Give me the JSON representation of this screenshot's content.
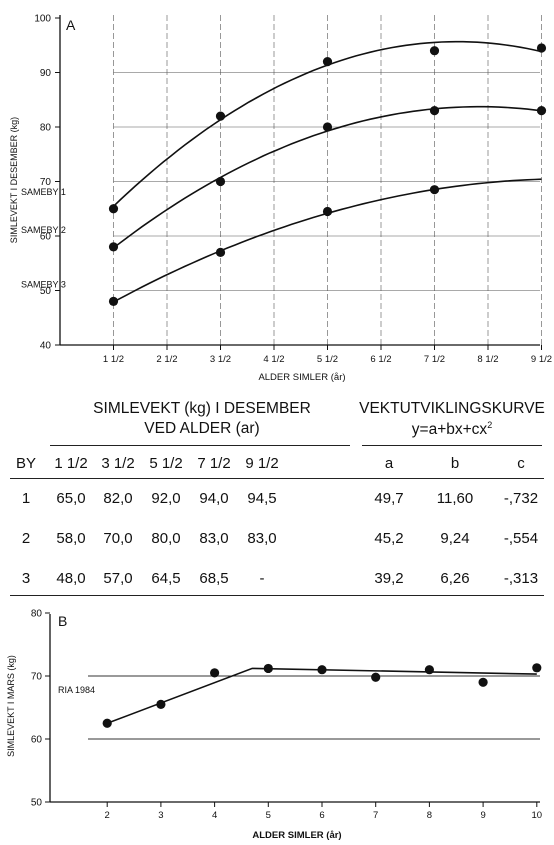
{
  "chart_data": [
    {
      "type": "line",
      "panel_label": "A",
      "xlabel": "ALDER SIMLER (år)",
      "ylabel": "SIMLEVEKT I DESEMBER (kg)",
      "x_tick_labels": [
        "1 1/2",
        "2 1/2",
        "3 1/2",
        "4 1/2",
        "5 1/2",
        "6 1/2",
        "7 1/2",
        "8 1/2",
        "9 1/2"
      ],
      "x_ticks": [
        1.5,
        2.5,
        3.5,
        4.5,
        5.5,
        6.5,
        7.5,
        8.5,
        9.5
      ],
      "xlim": [
        0.5,
        9.5
      ],
      "ylim": [
        40,
        100
      ],
      "yticks": [
        40,
        50,
        60,
        70,
        80,
        90,
        100
      ],
      "grid": true,
      "series": [
        {
          "name": "SAMEBY 1",
          "x": [
            1.5,
            3.5,
            5.5,
            7.5,
            9.5
          ],
          "values": [
            65.0,
            82.0,
            92.0,
            94.0,
            94.5
          ],
          "coef": {
            "a": 49.7,
            "b": 11.6,
            "c": -0.732
          }
        },
        {
          "name": "SAMEBY 2",
          "x": [
            1.5,
            3.5,
            5.5,
            7.5,
            9.5
          ],
          "values": [
            58.0,
            70.0,
            80.0,
            83.0,
            83.0
          ],
          "coef": {
            "a": 45.2,
            "b": 9.24,
            "c": -0.554
          }
        },
        {
          "name": "SAMEBY 3",
          "x": [
            1.5,
            3.5,
            5.5,
            7.5
          ],
          "values": [
            48.0,
            57.0,
            64.5,
            68.5
          ],
          "coef": {
            "a": 39.2,
            "b": 6.26,
            "c": -0.313
          }
        }
      ]
    },
    {
      "type": "line",
      "panel_label": "B",
      "xlabel": "ALDER SIMLER (år)",
      "ylabel": "SIMLEVEKT I MARS (kg)",
      "x_tick_labels": [
        "2",
        "3",
        "4",
        "5",
        "6",
        "7",
        "8",
        "9",
        "10"
      ],
      "x_ticks": [
        2,
        3,
        4,
        5,
        6,
        7,
        8,
        9,
        10
      ],
      "xlim": [
        1,
        10
      ],
      "ylim": [
        50,
        80
      ],
      "yticks": [
        50,
        60,
        70,
        80
      ],
      "gridlines_y": [
        60,
        70
      ],
      "series": [
        {
          "name": "RIA 1984",
          "x": [
            2,
            3,
            4,
            5,
            6,
            7,
            8,
            9,
            10
          ],
          "values": [
            62.5,
            65.5,
            70.5,
            71.2,
            71.0,
            69.8,
            71.0,
            69.0,
            71.3
          ],
          "fit_line": {
            "x": [
              2,
              4.7,
              10
            ],
            "values": [
              62.5,
              71.2,
              70.3
            ]
          }
        }
      ]
    }
  ],
  "table": {
    "group1_title_line1": "SIMLEVEKT (kg) I DESEMBER",
    "group1_title_line2": "VED ALDER (ar)",
    "group2_title_line1": "VEKTUTVIKLINGSKURVE",
    "group2_formula": "y=a+bx+cx",
    "group2_formula_exp": "2",
    "headers": [
      "BY",
      "1 1/2",
      "3 1/2",
      "5 1/2",
      "7 1/2",
      "9 1/2",
      "a",
      "b",
      "c"
    ],
    "rows": [
      [
        "1",
        "65,0",
        "82,0",
        "92,0",
        "94,0",
        "94,5",
        "49,7",
        "11,60",
        "-,732"
      ],
      [
        "2",
        "58,0",
        "70,0",
        "80,0",
        "83,0",
        "83,0",
        "45,2",
        "9,24",
        "-,554"
      ],
      [
        "3",
        "48,0",
        "57,0",
        "64,5",
        "68,5",
        "-",
        "39,2",
        "6,26",
        "-,313"
      ]
    ]
  }
}
